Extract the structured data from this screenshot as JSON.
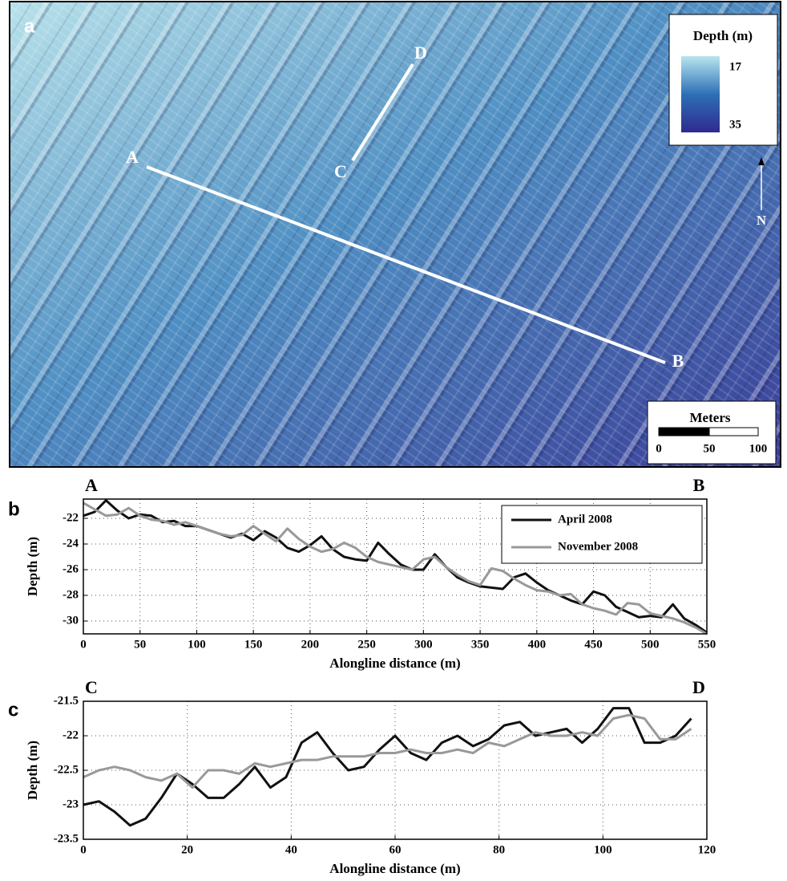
{
  "map": {
    "panel_label": "a",
    "legend_title": "Depth (m)",
    "depth_min": "17",
    "depth_max": "35",
    "points": [
      "A",
      "B",
      "C",
      "D"
    ],
    "north": "N",
    "scale_title": "Meters",
    "scale_ticks": [
      "0",
      "50",
      "100"
    ]
  },
  "chart_data": [
    {
      "type": "line",
      "panel_label": "b",
      "start_label": "A",
      "end_label": "B",
      "x_label": "Alongline distance (m)",
      "y_label": "Depth (m)",
      "x": [
        0,
        10,
        20,
        30,
        40,
        50,
        60,
        70,
        80,
        90,
        100,
        110,
        120,
        130,
        140,
        150,
        160,
        170,
        180,
        190,
        200,
        210,
        220,
        230,
        240,
        250,
        260,
        270,
        280,
        290,
        300,
        310,
        320,
        330,
        340,
        350,
        360,
        370,
        380,
        390,
        400,
        410,
        420,
        430,
        440,
        450,
        460,
        470,
        480,
        490,
        500,
        510,
        520,
        530,
        540,
        550
      ],
      "series": [
        {
          "name": "April 2008",
          "color": "#111111",
          "values": [
            -21.8,
            -21.5,
            -20.6,
            -21.4,
            -22.0,
            -21.7,
            -21.8,
            -22.3,
            -22.2,
            -22.6,
            -22.6,
            -22.9,
            -23.2,
            -23.5,
            -23.2,
            -23.7,
            -23.0,
            -23.5,
            -24.3,
            -24.6,
            -24.1,
            -23.4,
            -24.4,
            -25.0,
            -25.2,
            -25.3,
            -23.9,
            -24.8,
            -25.6,
            -26.0,
            -26.0,
            -24.8,
            -25.8,
            -26.6,
            -27.0,
            -27.3,
            -27.4,
            -27.5,
            -26.6,
            -26.3,
            -27.0,
            -27.6,
            -28.0,
            -28.4,
            -28.7,
            -27.7,
            -28.0,
            -28.9,
            -29.3,
            -29.7,
            -29.6,
            -29.7,
            -28.7,
            -29.8,
            -30.3,
            -30.9
          ]
        },
        {
          "name": "November 2008",
          "color": "#999999",
          "values": [
            -20.8,
            -21.3,
            -21.8,
            -21.7,
            -21.2,
            -21.8,
            -22.1,
            -22.2,
            -22.5,
            -22.3,
            -22.6,
            -22.9,
            -23.2,
            -23.4,
            -23.3,
            -22.6,
            -23.2,
            -23.8,
            -22.8,
            -23.6,
            -24.2,
            -24.6,
            -24.4,
            -23.9,
            -24.3,
            -25.0,
            -25.4,
            -25.6,
            -25.8,
            -26.0,
            -25.2,
            -25.0,
            -25.8,
            -26.4,
            -26.9,
            -27.2,
            -25.9,
            -26.1,
            -26.7,
            -27.2,
            -27.6,
            -27.7,
            -28.0,
            -27.9,
            -28.7,
            -29.0,
            -29.2,
            -29.5,
            -28.6,
            -28.7,
            -29.4,
            -29.6,
            -29.8,
            -30.1,
            -30.5,
            -31.0
          ]
        }
      ],
      "xlim": [
        0,
        550
      ],
      "xticks": [
        0,
        50,
        100,
        150,
        200,
        250,
        300,
        350,
        400,
        450,
        500,
        550
      ],
      "ylim": [
        -31,
        -20.5
      ],
      "yticks": [
        -22,
        -24,
        -26,
        -28,
        -30
      ],
      "grid": true,
      "legend": "upper right"
    },
    {
      "type": "line",
      "panel_label": "c",
      "start_label": "C",
      "end_label": "D",
      "x_label": "Alongline distance (m)",
      "y_label": "Depth (m)",
      "x": [
        0,
        3,
        6,
        9,
        12,
        15,
        18,
        21,
        24,
        27,
        30,
        33,
        36,
        39,
        42,
        45,
        48,
        51,
        54,
        57,
        60,
        63,
        66,
        69,
        72,
        75,
        78,
        81,
        84,
        87,
        90,
        93,
        96,
        99,
        102,
        105,
        108,
        111,
        114,
        117
      ],
      "series": [
        {
          "name": "April 2008",
          "color": "#111111",
          "values": [
            -23.0,
            -22.95,
            -23.1,
            -23.3,
            -23.2,
            -22.9,
            -22.55,
            -22.7,
            -22.9,
            -22.9,
            -22.7,
            -22.45,
            -22.75,
            -22.6,
            -22.1,
            -21.95,
            -22.25,
            -22.5,
            -22.45,
            -22.2,
            -22.0,
            -22.25,
            -22.35,
            -22.1,
            -22.0,
            -22.15,
            -22.05,
            -21.85,
            -21.8,
            -22.0,
            -21.95,
            -21.9,
            -22.1,
            -21.9,
            -21.6,
            -21.6,
            -22.1,
            -22.1,
            -22.0,
            -21.75
          ]
        },
        {
          "name": "November 2008",
          "color": "#999999",
          "values": [
            -22.6,
            -22.5,
            -22.45,
            -22.5,
            -22.6,
            -22.65,
            -22.55,
            -22.75,
            -22.5,
            -22.5,
            -22.55,
            -22.4,
            -22.45,
            -22.4,
            -22.35,
            -22.35,
            -22.3,
            -22.3,
            -22.3,
            -22.25,
            -22.25,
            -22.2,
            -22.25,
            -22.25,
            -22.2,
            -22.25,
            -22.1,
            -22.15,
            -22.05,
            -21.95,
            -22.0,
            -22.0,
            -21.95,
            -22.0,
            -21.75,
            -21.7,
            -21.75,
            -22.05,
            -22.05,
            -21.9
          ]
        }
      ],
      "xlim": [
        0,
        120
      ],
      "xticks": [
        0,
        20,
        40,
        60,
        80,
        100,
        120
      ],
      "ylim": [
        -23.5,
        -21.5
      ],
      "yticks": [
        -21.5,
        -22,
        -22.5,
        -23,
        -23.5
      ],
      "grid": true
    }
  ]
}
